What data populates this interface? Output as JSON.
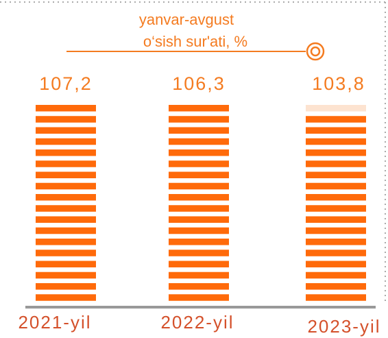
{
  "chart_data": {
    "type": "bar",
    "title": "yanvar-avgust",
    "subtitle": "o‘sish sur'ati, %",
    "categories": [
      "2021-yil",
      "2022-yil",
      "2023-yil"
    ],
    "values": [
      107.2,
      106.3,
      103.8
    ],
    "value_labels": [
      "107,2",
      "106,3",
      "103,8"
    ],
    "color": "#ff6a0a",
    "background_color": "#fde3d0"
  }
}
